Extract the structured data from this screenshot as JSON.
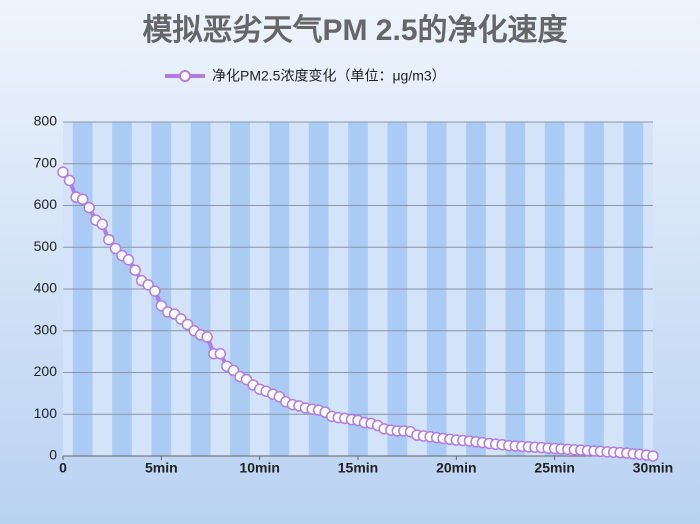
{
  "chart_data": {
    "type": "line",
    "title": "模拟恶劣天气PM 2.5的净化速度",
    "x": [
      0,
      0.33,
      0.67,
      1,
      1.33,
      1.67,
      2,
      2.33,
      2.67,
      3,
      3.33,
      3.67,
      4,
      4.33,
      4.67,
      5,
      5.33,
      5.67,
      6,
      6.33,
      6.67,
      7,
      7.33,
      7.67,
      8,
      8.33,
      8.67,
      9,
      9.33,
      9.67,
      10,
      10.33,
      10.67,
      11,
      11.33,
      11.67,
      12,
      12.33,
      12.67,
      13,
      13.33,
      13.67,
      14,
      14.33,
      14.67,
      15,
      15.33,
      15.67,
      16,
      16.33,
      16.67,
      17,
      17.33,
      17.67,
      18,
      18.33,
      18.67,
      19,
      19.33,
      19.67,
      20,
      20.33,
      20.67,
      21,
      21.33,
      21.67,
      22,
      22.33,
      22.67,
      23,
      23.33,
      23.67,
      24,
      24.33,
      24.67,
      25,
      25.33,
      25.67,
      26,
      26.33,
      26.67,
      27,
      27.33,
      27.67,
      28,
      28.33,
      28.67,
      29,
      29.33,
      29.67,
      30
    ],
    "series": [
      {
        "name": "净化PM2.5浓度变化（单位：μg/m3）",
        "color": "#b27be6",
        "values": [
          680,
          660,
          620,
          615,
          595,
          565,
          555,
          518,
          497,
          480,
          470,
          445,
          420,
          410,
          395,
          360,
          345,
          340,
          328,
          315,
          300,
          290,
          285,
          245,
          245,
          215,
          205,
          190,
          183,
          170,
          160,
          155,
          148,
          142,
          130,
          123,
          120,
          115,
          112,
          110,
          105,
          95,
          92,
          90,
          87,
          85,
          80,
          78,
          73,
          65,
          62,
          60,
          60,
          58,
          50,
          48,
          46,
          44,
          42,
          40,
          38,
          37,
          36,
          34,
          32,
          30,
          28,
          27,
          25,
          24,
          23,
          22,
          21,
          20,
          19,
          18,
          17,
          16,
          15,
          14,
          13,
          12,
          11,
          10,
          9,
          8,
          7,
          5,
          4,
          2,
          0
        ]
      }
    ],
    "xlim": [
      0,
      30
    ],
    "xticks": [
      0,
      {
        "value": 5,
        "label": "5min"
      },
      {
        "value": 10,
        "label": "10min"
      },
      {
        "value": 15,
        "label": "15min"
      },
      {
        "value": 20,
        "label": "20min"
      },
      {
        "value": 25,
        "label": "25min"
      },
      {
        "value": 30,
        "label": "30min"
      }
    ],
    "ylim": [
      0,
      800
    ],
    "yticks": [
      0,
      100,
      200,
      300,
      400,
      500,
      600,
      700,
      800
    ],
    "grid": true
  }
}
